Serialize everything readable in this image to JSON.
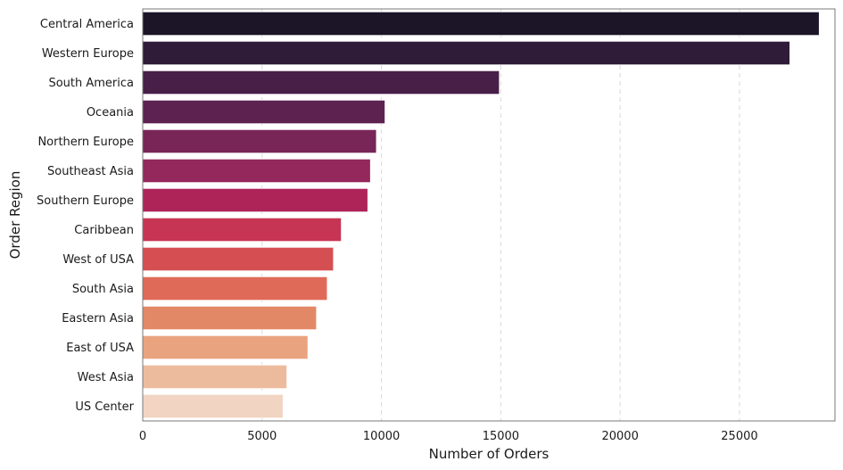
{
  "chart_data": {
    "type": "bar",
    "orientation": "horizontal",
    "title": "",
    "xlabel": "Number of Orders",
    "ylabel": "Order Region",
    "xlim": [
      0,
      29000
    ],
    "xticks": [
      0,
      5000,
      10000,
      15000,
      20000,
      25000
    ],
    "grid": "vertical-dashed",
    "categories": [
      "Central America",
      "Western Europe",
      "South America",
      "Oceania",
      "Northern Europe",
      "Southeast Asia",
      "Southern Europe",
      "Caribbean",
      "West of USA ",
      "South Asia",
      "Eastern Asia",
      "East of USA",
      "West Asia",
      "US Center "
    ],
    "values": [
      28340,
      27110,
      14940,
      10150,
      9790,
      9540,
      9430,
      8320,
      7990,
      7730,
      7280,
      6920,
      6040,
      5880
    ],
    "colors": [
      "#1c1427",
      "#2e1c38",
      "#471f47",
      "#5e2250",
      "#782557",
      "#94275c",
      "#ae2459",
      "#c63553",
      "#d54f52",
      "#df6a57",
      "#e38866",
      "#e9a47f",
      "#ecbb9d",
      "#f1d4c2"
    ]
  }
}
